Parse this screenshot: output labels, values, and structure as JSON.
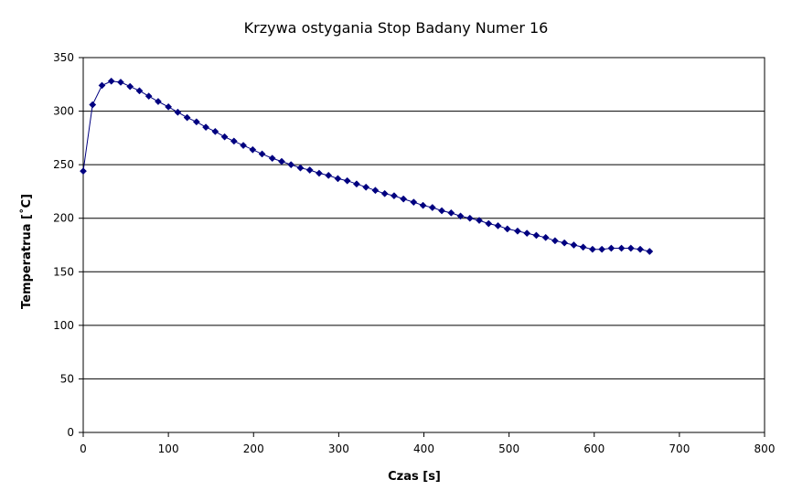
{
  "chart_data": {
    "type": "line",
    "title": "Krzywa ostygania Stop Badany Numer 16",
    "xlabel": "Czas [s]",
    "ylabel": "Temperatrua [˚C]",
    "xlim": [
      0,
      800
    ],
    "ylim": [
      0,
      350
    ],
    "x_ticks": [
      0,
      100,
      200,
      300,
      400,
      500,
      600,
      700,
      800
    ],
    "y_ticks": [
      0,
      50,
      100,
      150,
      200,
      250,
      300,
      350
    ],
    "x_tick_labels": [
      "0",
      "100",
      "200",
      "300",
      "400",
      "500",
      "600",
      "700",
      "800"
    ],
    "y_tick_labels": [
      "0",
      "50",
      "100",
      "150",
      "200",
      "250",
      "300",
      "350"
    ],
    "grid": "horizontal",
    "legend": "none",
    "series": [
      {
        "color": "#000080",
        "marker": "diamond",
        "x": [
          0,
          11,
          22,
          33,
          44,
          55,
          66,
          77,
          88,
          100,
          111,
          122,
          133,
          144,
          155,
          166,
          177,
          188,
          199,
          210,
          222,
          233,
          244,
          255,
          266,
          277,
          288,
          299,
          310,
          321,
          332,
          343,
          354,
          365,
          376,
          388,
          399,
          410,
          421,
          432,
          443,
          454,
          465,
          476,
          487,
          498,
          510,
          521,
          532,
          543,
          554,
          565,
          576,
          587,
          598,
          609,
          620,
          632,
          643,
          654,
          665
        ],
        "y": [
          244,
          306,
          324,
          328,
          327,
          323,
          319,
          314,
          309,
          304,
          299,
          294,
          290,
          285,
          281,
          276,
          272,
          268,
          264,
          260,
          256,
          253,
          250,
          247,
          245,
          242,
          240,
          237,
          235,
          232,
          229,
          226,
          223,
          221,
          218,
          215,
          212,
          210,
          207,
          205,
          202,
          200,
          198,
          195,
          193,
          190,
          188,
          186,
          184,
          182,
          179,
          177,
          175,
          173,
          171,
          171,
          172,
          172,
          172,
          171,
          169
        ]
      }
    ]
  }
}
